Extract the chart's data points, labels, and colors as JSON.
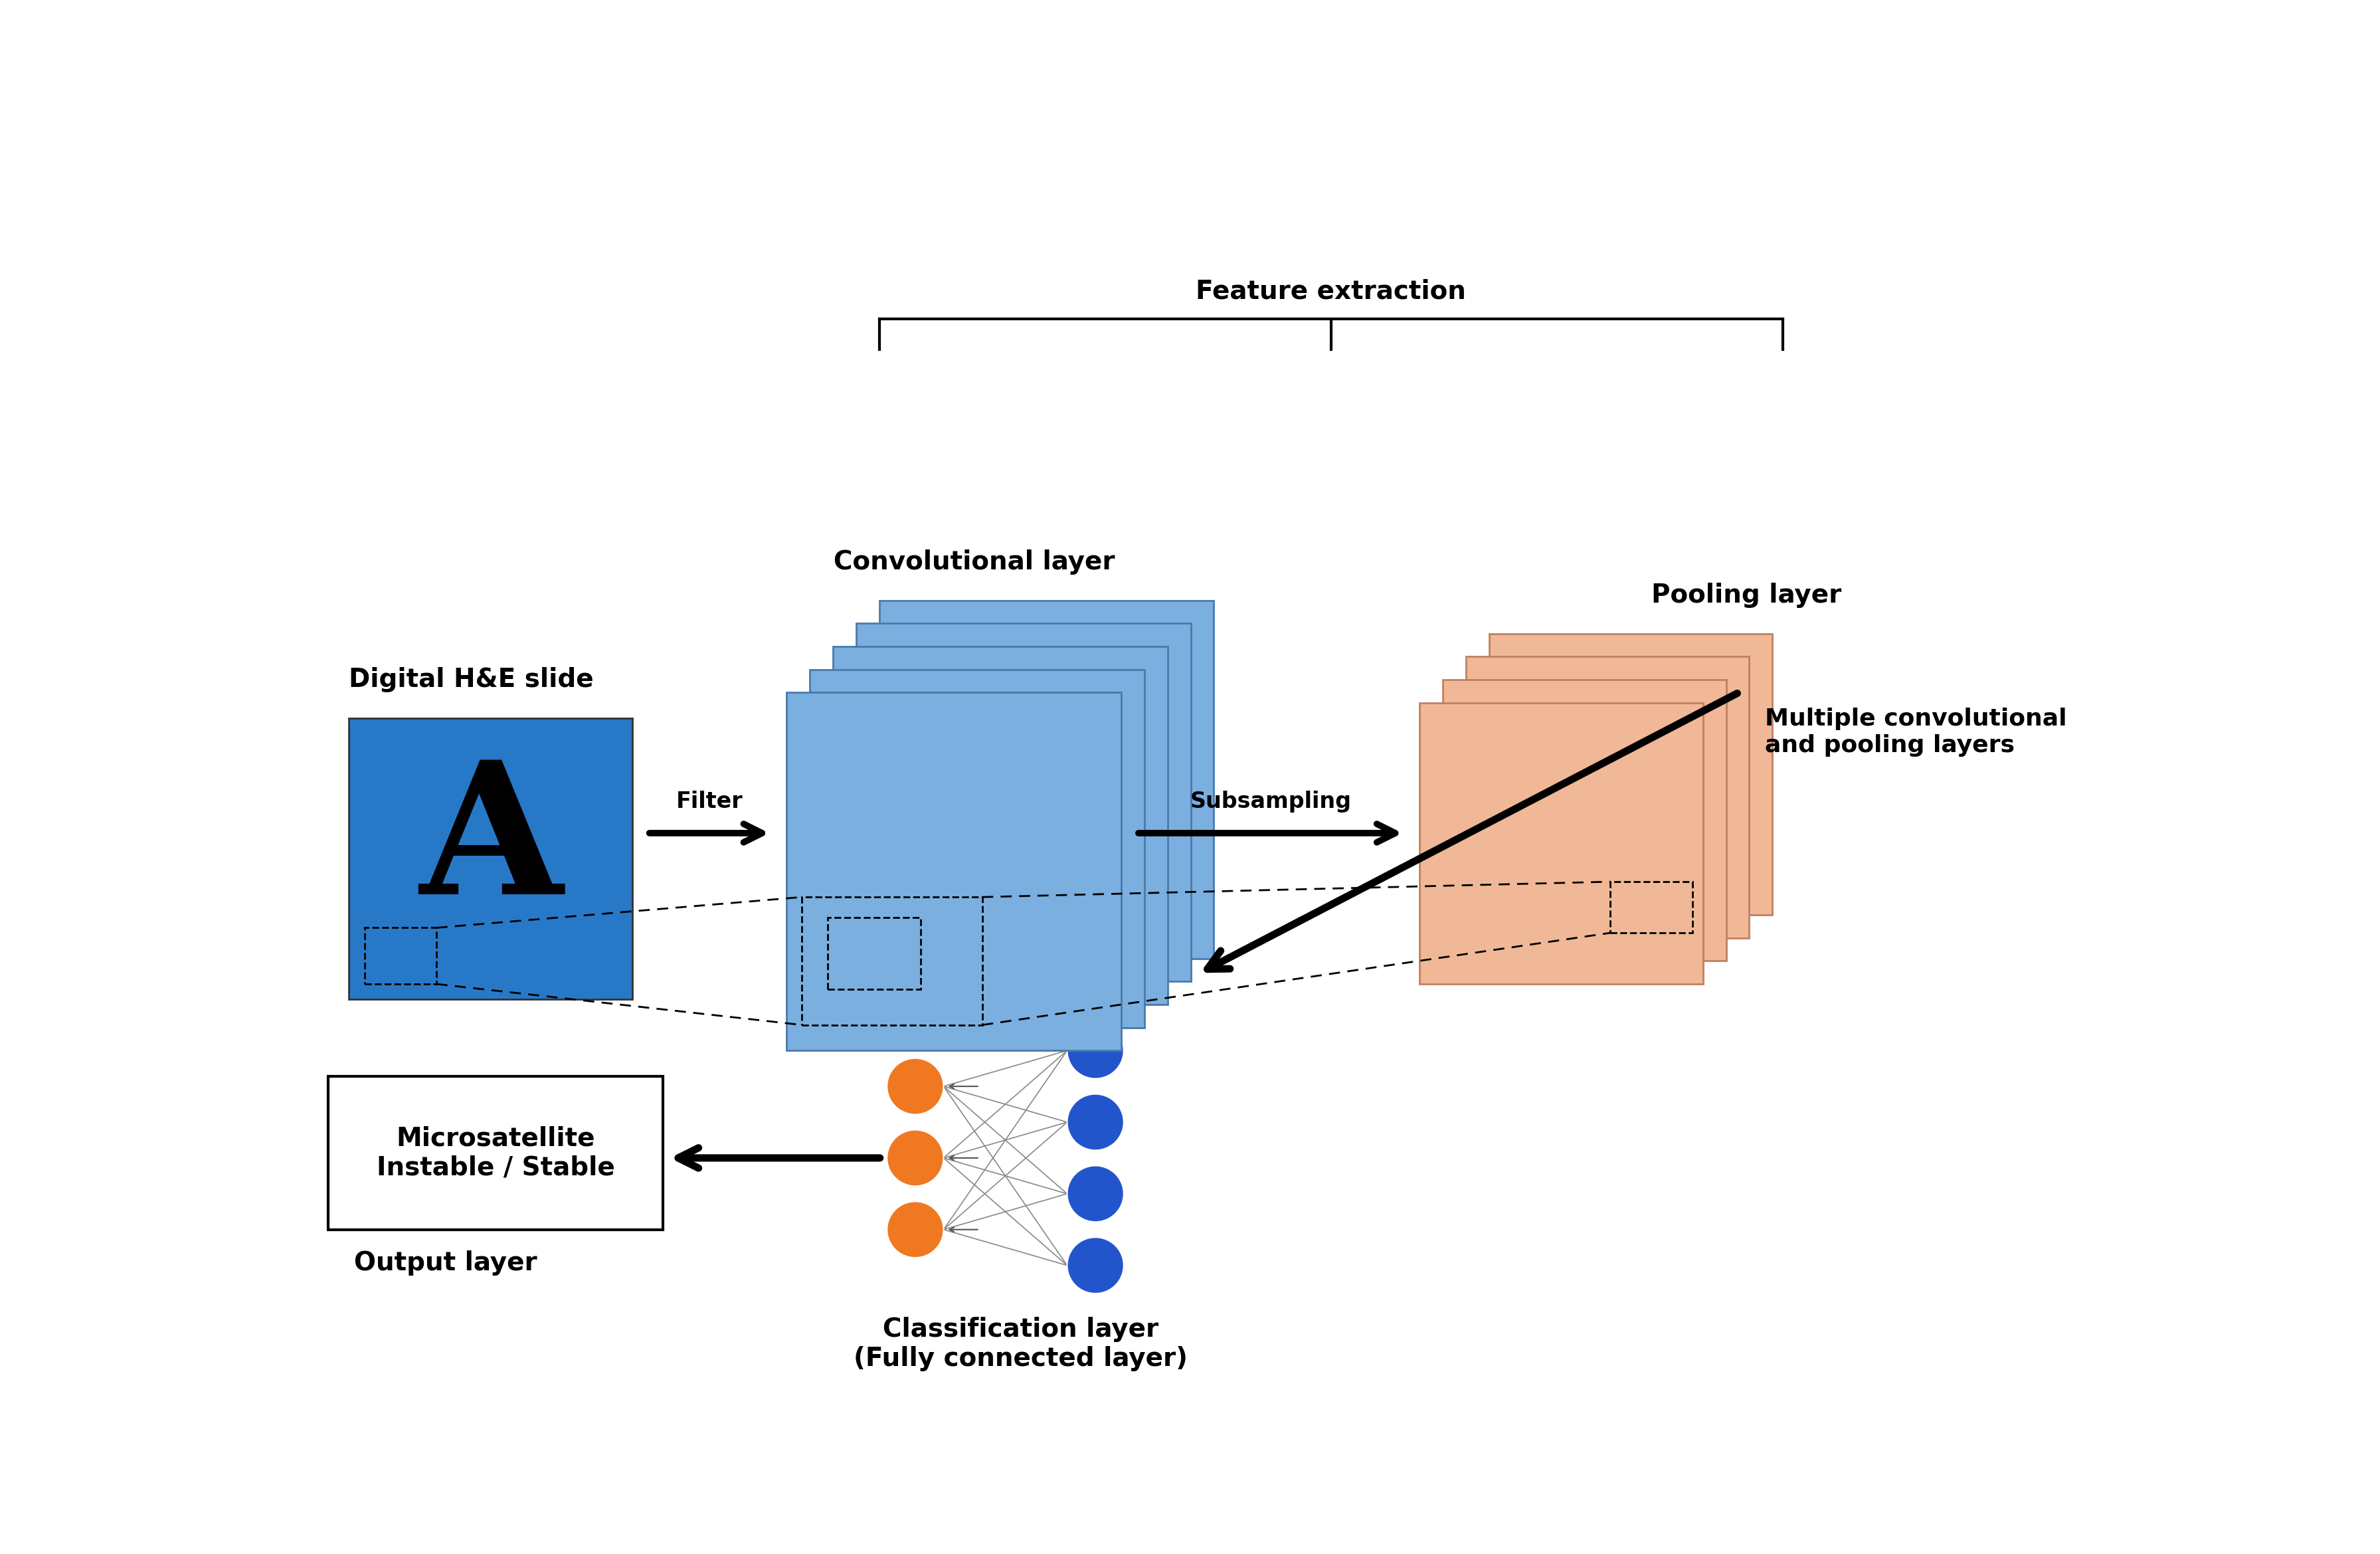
{
  "title": "Feature extraction",
  "bg_color": "#ffffff",
  "slide_color": "#2878c8",
  "conv_color": "#7aafe0",
  "pool_color": "#f0b896",
  "conv_edge": "#4a7aaa",
  "pool_edge": "#c08060",
  "neuron_orange": "#f07820",
  "neuron_blue": "#2255cc",
  "labels": {
    "digital_slide": "Digital H&E slide",
    "conv_layer": "Convolutional layer",
    "pool_layer": "Pooling layer",
    "filter": "Filter",
    "subsampling": "Subsampling",
    "output_box": "Microsatellite\nInstable / Stable",
    "class_layer": "Classification layer\n(Fully connected layer)",
    "output_label": "Output layer",
    "multiple_conv": "Multiple convolutional\nand pooling layers"
  }
}
